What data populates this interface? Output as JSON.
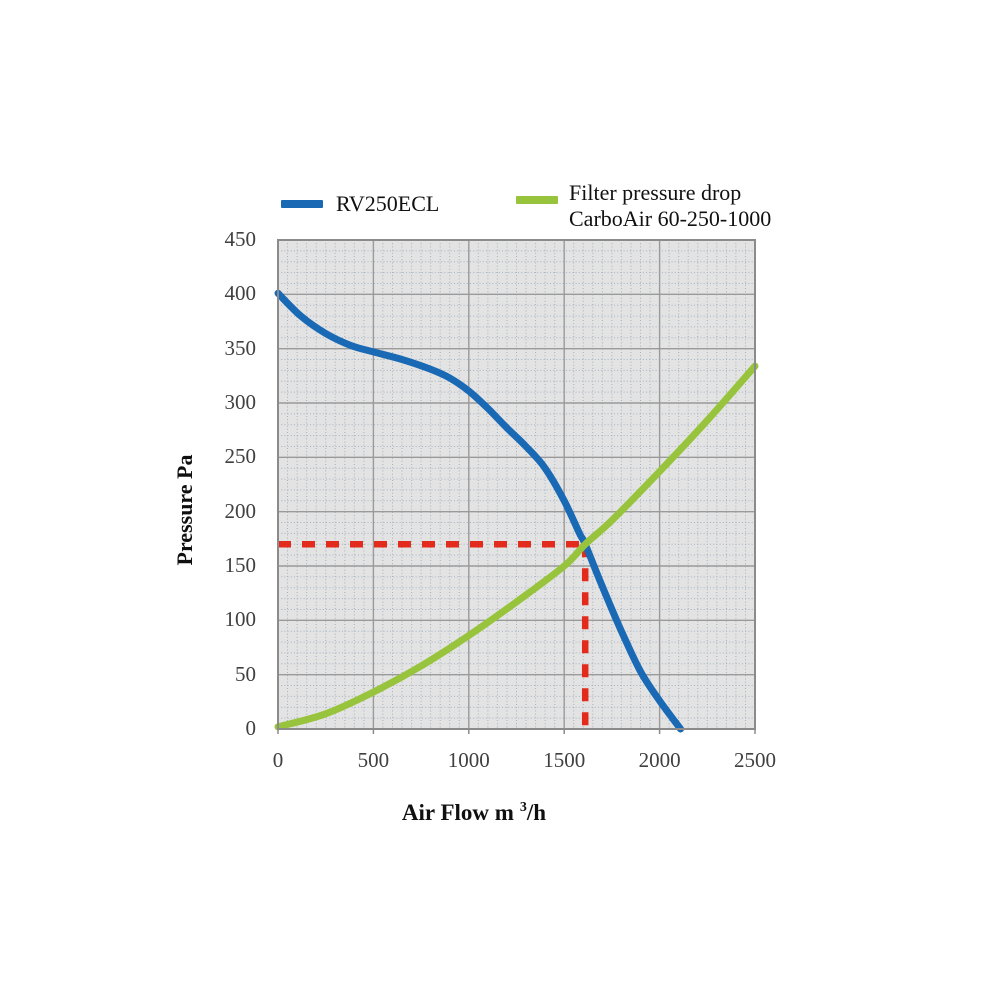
{
  "chart_data": {
    "type": "line",
    "title": "",
    "xlabel": "Air Flow m³/h",
    "ylabel": "Pressure Pa",
    "xlim": [
      0,
      2500
    ],
    "ylim": [
      0,
      450
    ],
    "xticks": [
      0,
      500,
      1000,
      1500,
      2000,
      2500
    ],
    "yticks": [
      0,
      50,
      100,
      150,
      200,
      250,
      300,
      350,
      400,
      450
    ],
    "x_major_step": 500,
    "x_minor_step": 50,
    "y_major_step": 50,
    "y_minor_step": 10,
    "grid": true,
    "legend_position": "top",
    "series": [
      {
        "name": "RV250ECL",
        "color": "#1a69b4",
        "points": [
          [
            0,
            401
          ],
          [
            120,
            380
          ],
          [
            250,
            364
          ],
          [
            380,
            353
          ],
          [
            500,
            347
          ],
          [
            650,
            340
          ],
          [
            800,
            331
          ],
          [
            900,
            323
          ],
          [
            1000,
            311
          ],
          [
            1100,
            295
          ],
          [
            1200,
            277
          ],
          [
            1300,
            260
          ],
          [
            1400,
            240
          ],
          [
            1500,
            210
          ],
          [
            1580,
            180
          ],
          [
            1610,
            170
          ],
          [
            1700,
            131
          ],
          [
            1800,
            90
          ],
          [
            1900,
            53
          ],
          [
            2000,
            26
          ],
          [
            2110,
            0
          ]
        ]
      },
      {
        "name": "Filter pressure drop CarboAir 60-250-1000",
        "color": "#97c43c",
        "points": [
          [
            0,
            2
          ],
          [
            250,
            14
          ],
          [
            500,
            34
          ],
          [
            750,
            58
          ],
          [
            1000,
            86
          ],
          [
            1250,
            117
          ],
          [
            1500,
            150
          ],
          [
            1610,
            170
          ],
          [
            1750,
            192
          ],
          [
            2000,
            237
          ],
          [
            2250,
            284
          ],
          [
            2500,
            334
          ]
        ]
      }
    ],
    "operating_point": {
      "air_flow": 1610,
      "pressure": 170,
      "color": "#e32b1d",
      "style": "dashed"
    },
    "colors": {
      "plot_bg": "#e3e3e3",
      "grid_major": "#9a9a9a",
      "grid_minor": "#a4b2bd",
      "border": "#8b8b8b"
    }
  },
  "labels": {
    "legend1": "RV250ECL",
    "legend2_line1": "Filter pressure drop",
    "legend2_line2": "CarboAir 60-250-1000",
    "ylabel": "Pressure Pa",
    "xlabel_prefix": "Air Flow m",
    "xlabel_sup": "3",
    "xlabel_suffix": "/h"
  }
}
